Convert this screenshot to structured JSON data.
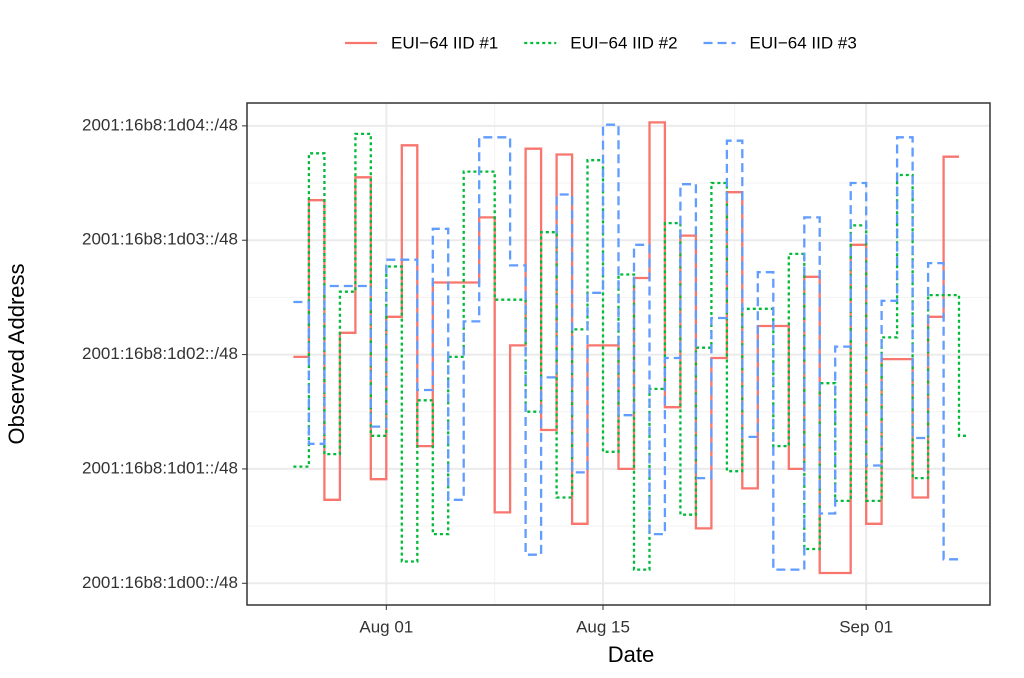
{
  "chart_data": {
    "type": "step",
    "x_label": "Date",
    "y_label": "Observed Address",
    "x": [
      "07-26",
      "07-27",
      "07-28",
      "07-29",
      "07-30",
      "07-31",
      "08-01",
      "08-02",
      "08-03",
      "08-04",
      "08-05",
      "08-06",
      "08-07",
      "08-08",
      "08-09",
      "08-10",
      "08-11",
      "08-12",
      "08-13",
      "08-14",
      "08-15",
      "08-16",
      "08-17",
      "08-18",
      "08-19",
      "08-20",
      "08-21",
      "08-22",
      "08-23",
      "08-24",
      "08-25",
      "08-26",
      "08-27",
      "08-28",
      "08-29",
      "08-30",
      "08-31",
      "09-01",
      "09-02",
      "09-03",
      "09-04",
      "09-05",
      "09-06",
      "09-07"
    ],
    "series": [
      {
        "name": "EUI−64 IID #1",
        "color": "#F8766D",
        "linetype": "solid",
        "values": [
          1.98,
          3.35,
          0.73,
          2.19,
          3.55,
          0.91,
          2.33,
          3.83,
          1.2,
          2.63,
          2.63,
          2.63,
          3.2,
          0.62,
          2.08,
          3.8,
          1.34,
          3.75,
          0.52,
          2.08,
          2.08,
          1.0,
          2.67,
          4.03,
          1.54,
          3.04,
          0.48,
          1.97,
          3.42,
          0.83,
          2.25,
          2.25,
          1.0,
          2.68,
          0.09,
          0.09,
          2.96,
          0.52,
          1.96,
          1.96,
          0.75,
          2.33,
          3.73,
          null
        ]
      },
      {
        "name": "EUI−64 IID #2",
        "color": "#00BA38",
        "linetype": "dotted",
        "values": [
          1.02,
          3.76,
          1.13,
          2.55,
          3.93,
          1.29,
          2.77,
          0.19,
          1.6,
          0.43,
          1.98,
          3.6,
          3.6,
          2.48,
          2.48,
          1.5,
          3.07,
          0.75,
          2.22,
          3.7,
          1.15,
          2.7,
          0.12,
          1.7,
          3.15,
          0.6,
          2.06,
          3.5,
          0.98,
          2.4,
          2.4,
          1.2,
          2.88,
          0.3,
          1.75,
          0.72,
          3.13,
          0.72,
          2.15,
          3.57,
          0.92,
          2.52,
          2.52,
          1.29
        ]
      },
      {
        "name": "EUI−64 IID #3",
        "color": "#619CFF",
        "linetype": "dashed",
        "values": [
          2.46,
          1.22,
          2.6,
          2.6,
          2.6,
          1.37,
          2.83,
          2.83,
          1.69,
          3.1,
          0.73,
          2.29,
          3.9,
          3.9,
          2.78,
          0.25,
          1.8,
          3.4,
          0.97,
          2.54,
          4.01,
          1.47,
          2.96,
          0.43,
          1.97,
          3.49,
          0.92,
          2.32,
          3.87,
          1.28,
          2.72,
          0.12,
          0.12,
          3.2,
          0.61,
          2.07,
          3.5,
          1.03,
          2.47,
          3.9,
          1.27,
          2.8,
          0.21,
          null
        ]
      }
    ],
    "xlim": [
      "07-23",
      "09-09"
    ],
    "xticks": [
      {
        "value": "08-01",
        "label": "Aug 01"
      },
      {
        "value": "08-15",
        "label": "Aug 15"
      },
      {
        "value": "09-01",
        "label": "Sep 01"
      }
    ],
    "ylim": [
      -0.19,
      4.2
    ],
    "yticks": [
      {
        "value": 0,
        "label": "2001:16b8:1d00::/48"
      },
      {
        "value": 1,
        "label": "2001:16b8:1d01::/48"
      },
      {
        "value": 2,
        "label": "2001:16b8:1d02::/48"
      },
      {
        "value": 3,
        "label": "2001:16b8:1d03::/48"
      },
      {
        "value": 4,
        "label": "2001:16b8:1d04::/48"
      }
    ],
    "grid": true,
    "legend": "top"
  }
}
